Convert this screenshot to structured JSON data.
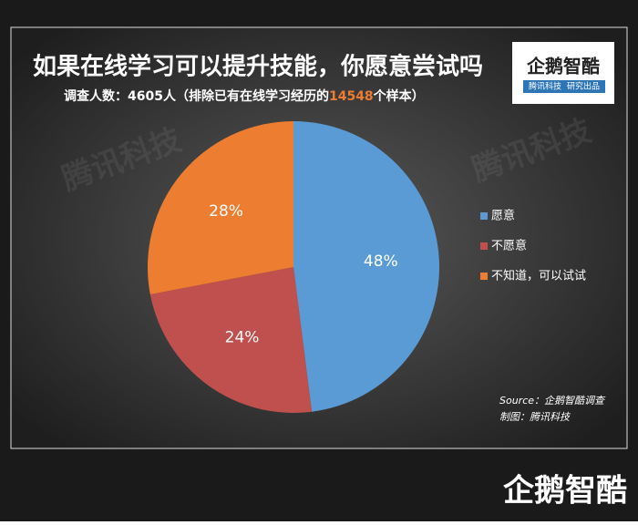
{
  "chart_data": {
    "type": "pie",
    "title": "如果在线学习可以提升技能，你愿意尝试吗",
    "subtitle": [
      "调查人数：4605人（排除已有在线学习经历的",
      "14548",
      "个样本）"
    ],
    "categories": [
      "愿意",
      "不愿意",
      "不知道，可以试试"
    ],
    "values": [
      48,
      24,
      28
    ],
    "value_labels": [
      "48%",
      "24%",
      "28%"
    ],
    "colors": [
      "#5b9bd5",
      "#c0504d",
      "#ed7d31"
    ],
    "source": [
      "Source：企鹅智酷调查",
      "制图：腾讯科技"
    ],
    "logo": {
      "name": "企鹅智酷",
      "tagline": [
        "腾讯科技",
        "研究出品"
      ]
    },
    "watermark": "腾讯科技",
    "footer_logo": "企鹅智酷"
  }
}
